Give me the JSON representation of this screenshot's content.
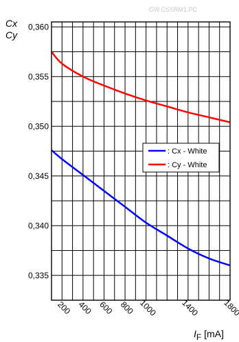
{
  "chart_data": {
    "type": "line",
    "watermark": "GW.CSSRM1.PC",
    "ylabel_top": "Cx",
    "ylabel_bottom": "Cy",
    "xlabel_symbol": "I",
    "xlabel_subscript": "F",
    "xlabel_unit": " [mA]",
    "xlim": [
      100,
      1800
    ],
    "ylim": [
      0.3325,
      0.3605
    ],
    "x_ticks": [
      200,
      400,
      600,
      800,
      1000,
      1400,
      1800
    ],
    "x_tick_labels": [
      "200",
      "400",
      "600",
      "800",
      "1000",
      "1400",
      "1800"
    ],
    "y_ticks": [
      0.335,
      0.34,
      0.345,
      0.35,
      0.355,
      0.36
    ],
    "y_tick_labels": [
      "0,335",
      "0,340",
      "0,345",
      "0,350",
      "0,355",
      "0,360"
    ],
    "grid": true,
    "legend_position": "right",
    "series": [
      {
        "name": ": Cx - White",
        "color": "#0000ff",
        "x": [
          100,
          200,
          400,
          600,
          800,
          1000,
          1200,
          1400,
          1600,
          1800
        ],
        "y": [
          0.3476,
          0.3467,
          0.3451,
          0.3435,
          0.3419,
          0.3403,
          0.339,
          0.3377,
          0.3367,
          0.336
        ]
      },
      {
        "name": ": Cy - White",
        "color": "#ff0000",
        "x": [
          100,
          200,
          400,
          600,
          800,
          1000,
          1200,
          1400,
          1600,
          1800
        ],
        "y": [
          0.3575,
          0.3563,
          0.355,
          0.3541,
          0.3533,
          0.3526,
          0.352,
          0.3514,
          0.3509,
          0.3504
        ]
      }
    ]
  }
}
